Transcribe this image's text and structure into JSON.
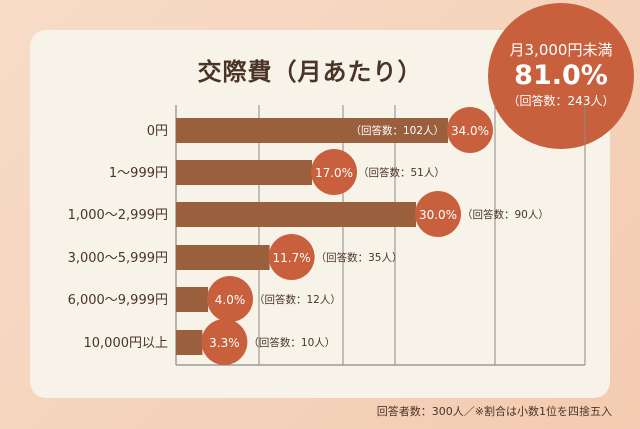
{
  "chart_data": {
    "type": "bar",
    "orientation": "horizontal",
    "title": "交際費（月あたり）",
    "categories": [
      "0円",
      "1〜999円",
      "1,000〜2,999円",
      "3,000〜5,999円",
      "6,000〜9,999円",
      "10,000円以上"
    ],
    "values": [
      34.0,
      17.0,
      30.0,
      11.7,
      4.0,
      3.3
    ],
    "value_labels": [
      "34.0%",
      "17.0%",
      "30.0%",
      "11.7%",
      "4.0%",
      "3.3%"
    ],
    "counts": [
      "（回答数：102人）",
      "（回答数：51人）",
      "（回答数：90人）",
      "（回答数：35人）",
      "（回答数：12人）",
      "（回答数：10人）"
    ],
    "unit": "%",
    "grid": true,
    "colors": {
      "bar": "#9a5f3c",
      "bubble": "#c8603e"
    }
  },
  "summary": {
    "line1": "月3,000円未満",
    "line2": "81.0%",
    "line3": "（回答数：243人）"
  },
  "footnote": "回答者数：300人／※割合は小数1位を四捨五入"
}
